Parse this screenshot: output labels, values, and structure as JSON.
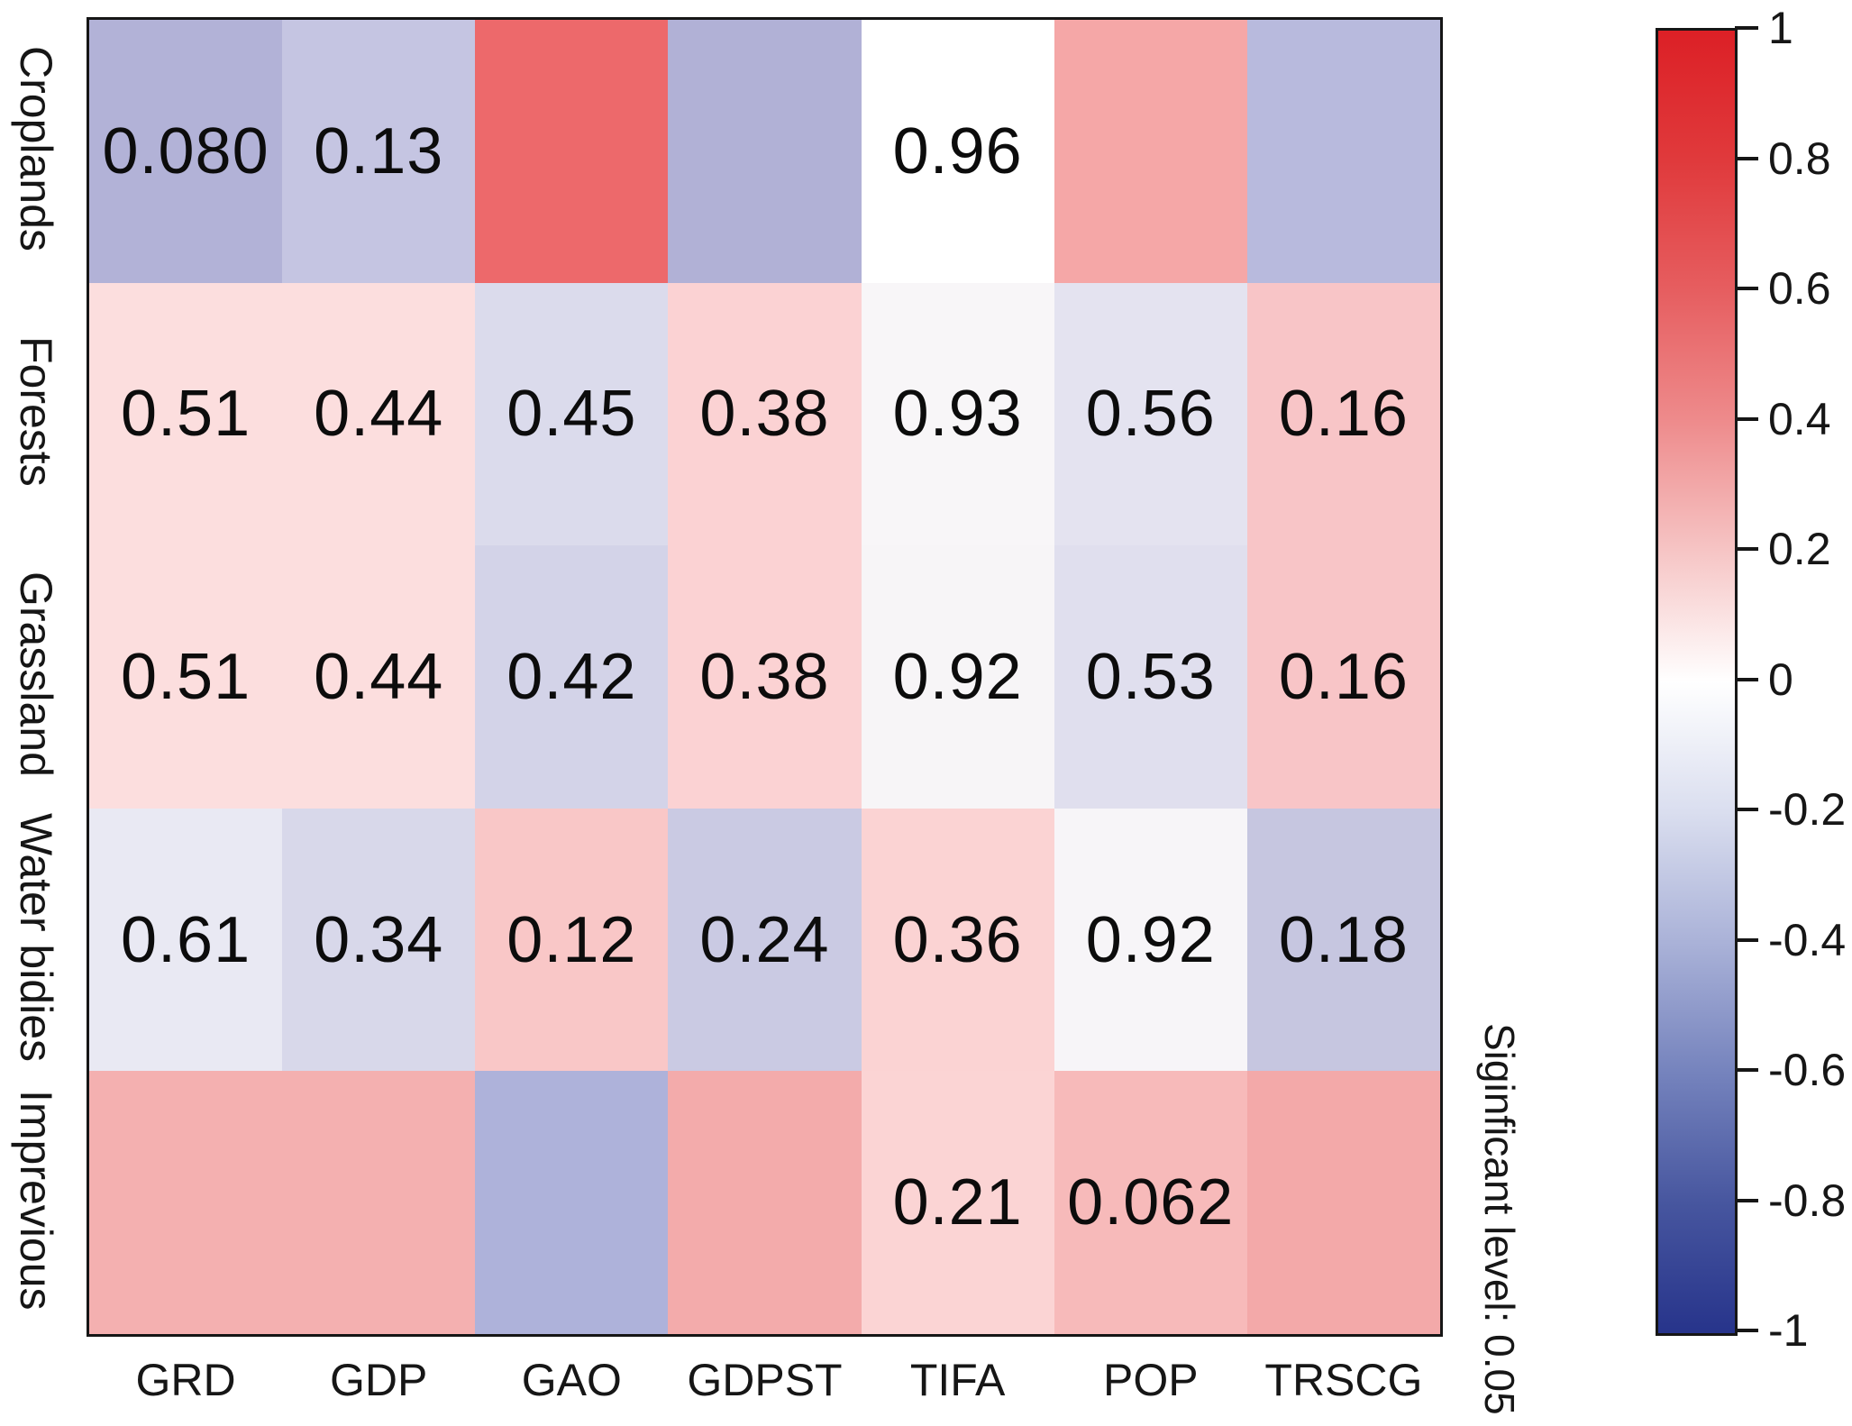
{
  "chart_data": {
    "type": "heatmap",
    "title": "",
    "rows": [
      "Croplands",
      "Forests",
      "Grassland",
      "Water bidies",
      "Imprevious"
    ],
    "columns": [
      "GRD",
      "GDP",
      "GAO",
      "GDPST",
      "TIFA",
      "POP",
      "TRSCG"
    ],
    "cell_labels": [
      [
        "0.080",
        "0.13",
        "",
        "",
        "0.96",
        "",
        ""
      ],
      [
        "0.51",
        "0.44",
        "0.45",
        "0.38",
        "0.93",
        "0.56",
        "0.16"
      ],
      [
        "0.51",
        "0.44",
        "0.42",
        "0.38",
        "0.92",
        "0.53",
        "0.16"
      ],
      [
        "0.61",
        "0.34",
        "0.12",
        "0.24",
        "0.36",
        "0.92",
        "0.18"
      ],
      [
        "",
        "",
        "",
        "",
        "0.21",
        "0.062",
        ""
      ]
    ],
    "cell_colors": [
      [
        "#b2b2d7",
        "#c5c5e2",
        "#ed696b",
        "#b1b1d6",
        "#ffffff",
        "#f5a7a7",
        "#b8badd"
      ],
      [
        "#fcdede",
        "#fcdede",
        "#dbdbec",
        "#fbd2d3",
        "#f8f6f8",
        "#e4e3f0",
        "#f8c5c7"
      ],
      [
        "#fcdede",
        "#fcdede",
        "#d3d3e8",
        "#fbd2d3",
        "#f7f5f7",
        "#e0dfee",
        "#f8c5c7"
      ],
      [
        "#e9e9f3",
        "#d8d8ea",
        "#f9c7c7",
        "#cacae3",
        "#fbd3d3",
        "#f7f5f8",
        "#c6c6e0"
      ],
      [
        "#f4b0b0",
        "#f4b0b0",
        "#aeb2da",
        "#f3abab",
        "#fbd4d4",
        "#f7baba",
        "#f3a9a9"
      ]
    ],
    "colorbar": {
      "range": [
        -1,
        1
      ],
      "ticks": [
        "1",
        "0.8",
        "0.6",
        "0.4",
        "0.2",
        "0",
        "-0.2",
        "-0.4",
        "-0.6",
        "-0.8",
        "-1"
      ],
      "gradient_top_to_bottom": [
        "#dc2026",
        "#e03a3c",
        "#e65e60",
        "#ee8b8c",
        "#f6c5c5",
        "#ffffff",
        "#dadeef",
        "#aab2d8",
        "#7583bd",
        "#47569f",
        "#27348b"
      ]
    },
    "annotation": "Siginficant level: 0.05",
    "legend_position": "right",
    "grid": false
  }
}
